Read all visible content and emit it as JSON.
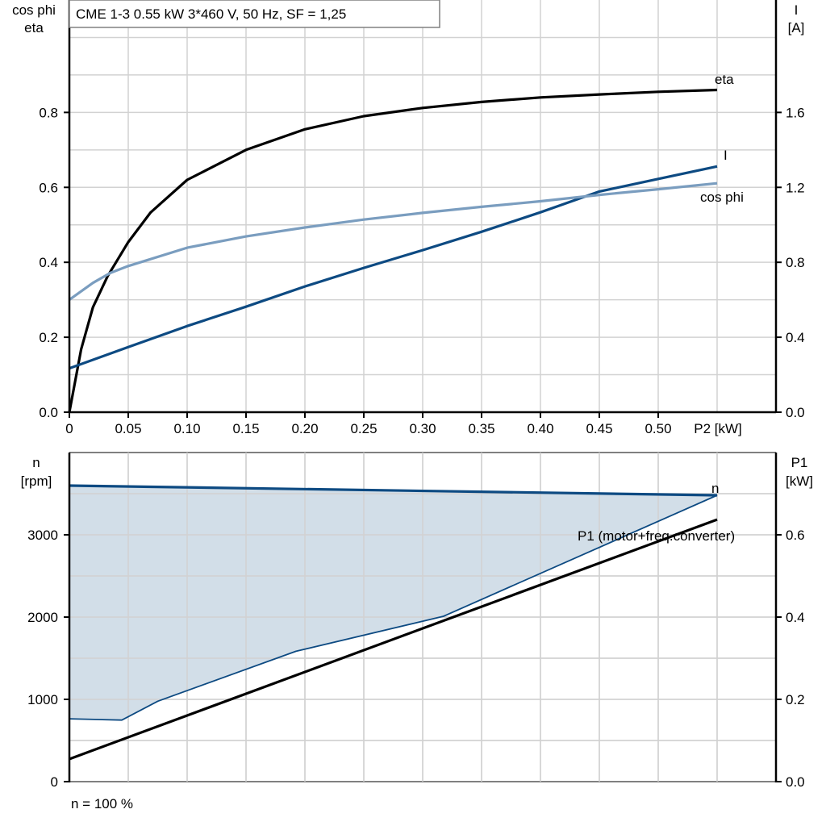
{
  "chart_data": [
    {
      "type": "line",
      "title": "CME 1-3   0.55 kW   3*460 V, 50 Hz, SF = 1,25",
      "xlabel": "P2 [kW]",
      "ylabel_left": [
        "cos phi",
        "eta"
      ],
      "ylabel_right": [
        "I",
        "[A]"
      ],
      "xlim": [
        0,
        0.6
      ],
      "ylim_left": [
        0,
        1.1
      ],
      "ylim_right": [
        0,
        2.2
      ],
      "x_ticks": [
        "0",
        "0.05",
        "0.10",
        "0.15",
        "0.20",
        "0.25",
        "0.30",
        "0.35",
        "0.40",
        "0.45",
        "0.50"
      ],
      "y_ticks_left": [
        "0.0",
        "0.2",
        "0.4",
        "0.6",
        "0.8"
      ],
      "y_ticks_right": [
        "0.0",
        "0.4",
        "0.8",
        "1.2",
        "1.6"
      ],
      "grid": true,
      "series": [
        {
          "name": "eta",
          "axis": "left",
          "color": "#000000",
          "x": [
            0,
            0.01,
            0.02,
            0.0325,
            0.05,
            0.069,
            0.1,
            0.15,
            0.2,
            0.25,
            0.3,
            0.35,
            0.4,
            0.45,
            0.5,
            0.55
          ],
          "y": [
            0,
            0.168,
            0.28,
            0.363,
            0.454,
            0.533,
            0.62,
            0.7,
            0.755,
            0.79,
            0.812,
            0.828,
            0.84,
            0.848,
            0.855,
            0.86
          ]
        },
        {
          "name": "I",
          "axis": "right",
          "color": "#0d4a82",
          "x": [
            0,
            0.05,
            0.1,
            0.15,
            0.2,
            0.25,
            0.3,
            0.35,
            0.4,
            0.45,
            0.5,
            0.55
          ],
          "y": [
            0.234,
            0.348,
            0.46,
            0.563,
            0.671,
            0.77,
            0.865,
            0.963,
            1.067,
            1.178,
            1.245,
            1.312
          ]
        },
        {
          "name": "cos phi",
          "axis": "left",
          "color": "#7a9dbf",
          "x": [
            0,
            0.02,
            0.035,
            0.05,
            0.1,
            0.15,
            0.2,
            0.25,
            0.3,
            0.35,
            0.4,
            0.45,
            0.5,
            0.55
          ],
          "y": [
            0.3,
            0.345,
            0.372,
            0.39,
            0.439,
            0.469,
            0.493,
            0.514,
            0.532,
            0.548,
            0.563,
            0.58,
            0.595,
            0.611
          ]
        }
      ]
    },
    {
      "type": "area",
      "ylabel_left": [
        "n",
        "[rpm]"
      ],
      "ylabel_right": [
        "P1",
        "[kW]"
      ],
      "xlim": [
        0,
        0.6
      ],
      "ylim_left": [
        0,
        4000
      ],
      "ylim_right": [
        0,
        0.8
      ],
      "y_ticks_left": [
        "0",
        "1000",
        "2000",
        "3000"
      ],
      "y_ticks_right": [
        "0.0",
        "0.2",
        "0.4",
        "0.6"
      ],
      "grid": true,
      "footnote": "n = 100 %",
      "series": [
        {
          "name": "n",
          "axis": "left",
          "color": "#0d4a82",
          "fill": "#d0dce7",
          "upper": {
            "x": [
              0,
              0.55
            ],
            "y": [
              3598,
              3480
            ]
          },
          "lower": {
            "x": [
              0,
              0.0445,
              0.0751,
              0.1924,
              0.3177,
              0.55
            ],
            "y": [
              764,
              748,
              977,
              1584,
              2010,
              3480
            ]
          }
        },
        {
          "name": "P1 (motor+freq.converter)",
          "axis": "right",
          "color": "#000000",
          "x": [
            0,
            0.55
          ],
          "y": [
            0.055,
            0.637
          ]
        }
      ]
    }
  ]
}
